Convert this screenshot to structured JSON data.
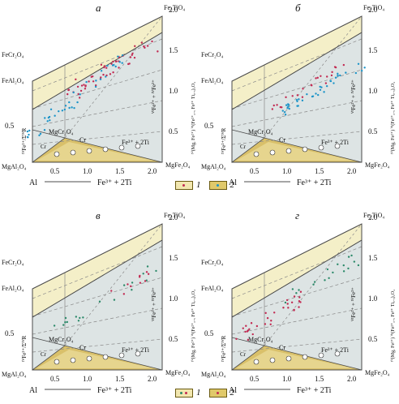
{
  "panels": [
    {
      "letter": "а",
      "corners": {
        "top_right": "Fe₂TiO₄",
        "left_mid": "FeCr₂O₄",
        "left_low": "FeAl₂O₄",
        "bottom_left": "MgAl₂O₄",
        "bottom_right": "MgFe₂O₄",
        "center": "MgCr₂O₄"
      },
      "inner": {
        "cr": "Cr",
        "fe_ti": "Fe³⁺ + 2Ti",
        "cr_small": "Cr"
      },
      "bottom_axis": {
        "left": "Al",
        "right": "Fe³⁺ + 2Ti",
        "ticks": [
          "0.5",
          "1.0",
          "1.5",
          "2.0"
        ]
      },
      "left_axis": {
        "label": "ᴵⱽFe²⁺/ΣᴵⱽR",
        "ticks": [
          "0.5"
        ]
      },
      "right_axis": {
        "label": "ᴵⱽ(Mg, Fe²⁺) ⱽᴵ(Fe²⁺₀.₅ Fe³⁺ Ti₀.₅)₂O₄",
        "ticks": [
          "0.5",
          "1.0",
          "1.5",
          "2.0"
        ]
      },
      "inner_axis": {
        "label": "ⱽᴵFe²⁺ + ᴵⱽFe²⁺"
      }
    },
    {
      "letter": "б",
      "corners": {
        "top_right": "Fe₂TiO₄",
        "left_mid": "FeCr₂O₄",
        "left_low": "FeAl₂O₄",
        "bottom_left": "MgAl₂O₄",
        "bottom_right": "MgFe₂O₄",
        "center": "MgCr₂O₄"
      },
      "inner": {
        "cr": "Cr",
        "fe_ti": "Fe³⁺ + 2Ti",
        "cr_small": "Cr"
      },
      "bottom_axis": {
        "left": "Al",
        "right": "Fe³⁺ + 2Ti",
        "ticks": [
          "0.5",
          "1.0",
          "1.5",
          "2.0"
        ]
      },
      "left_axis": {
        "label": "ᴵⱽFe²⁺/ΣᴵⱽR",
        "ticks": [
          "0.5"
        ]
      },
      "right_axis": {
        "label": "ᴵⱽ(Mg, Fe²⁺) ⱽᴵ(Fe²⁺₀.₅ Fe³⁺ Ti₀.₅)₂O₄",
        "ticks": [
          "0.5",
          "1.0",
          "1.5",
          "2.0"
        ]
      },
      "inner_axis": {
        "label": "ⱽᴵFe²⁺ + ᴵⱽFe²⁺"
      }
    },
    {
      "letter": "в",
      "corners": {
        "top_right": "Fe₂TiO₄",
        "left_mid": "FeCr₂O₄",
        "left_low": "FeAl₂O₄",
        "bottom_left": "MgAl₂O₄",
        "bottom_right": "MgFe₂O₄",
        "center": "MgCr₂O₄"
      },
      "inner": {
        "cr": "Cr",
        "fe_ti": "Fe³⁺ + 2Ti",
        "cr_small": "Cr"
      },
      "bottom_axis": {
        "left": "Al",
        "right": "Fe³⁺ + 2Ti",
        "ticks": [
          "0.5",
          "1.0",
          "1.5",
          "2.0"
        ]
      },
      "left_axis": {
        "label": "ᴵⱽFe²⁺/ΣᴵⱽR",
        "ticks": [
          "0.5"
        ]
      },
      "right_axis": {
        "label": "ᴵⱽ(Mg, Fe²⁺) ⱽᴵ(Fe²⁺₀.₅ Fe³⁺ Ti₀.₅)₂O₄",
        "ticks": [
          "0.5",
          "1.0",
          "1.5",
          "2.0"
        ]
      },
      "inner_axis": {
        "label": "ⱽᴵFe²⁺ + ᴵⱽFe²⁺"
      }
    },
    {
      "letter": "г",
      "corners": {
        "top_right": "Fe₂TiO₄",
        "left_mid": "FeCr₂O₄",
        "left_low": "FeAl₂O₄",
        "bottom_left": "MgAl₂O₄",
        "bottom_right": "MgFe₂O₄",
        "center": "MgCr₂O₄"
      },
      "inner": {
        "cr": "Cr",
        "fe_ti": "Fe³⁺ + 2Ti",
        "cr_small": "Cr"
      },
      "bottom_axis": {
        "left": "Al",
        "right": "Fe³⁺ + 2Ti",
        "ticks": [
          "0.5",
          "1.0",
          "1.5",
          "2.0"
        ]
      },
      "left_axis": {
        "label": "ᴵⱽFe²⁺/ΣᴵⱽR",
        "ticks": [
          "0.5"
        ]
      },
      "right_axis": {
        "label": "ᴵⱽ(Mg, Fe²⁺) ⱽᴵ(Fe²⁺₀.₅ Fe³⁺ Ti₀.₅)₂O₄",
        "ticks": [
          "0.5",
          "1.0",
          "1.5",
          "2.0"
        ]
      },
      "inner_axis": {
        "label": "ⱽᴵFe²⁺ + ᴵⱽFe²⁺"
      }
    }
  ],
  "legends": [
    {
      "items": [
        {
          "label": "1"
        },
        {
          "label": "2"
        }
      ]
    },
    {
      "items": [
        {
          "label": "1"
        },
        {
          "label": "2"
        }
      ]
    }
  ],
  "colors": {
    "prism_face": "#dde4e4",
    "prism_top": "#f4efc8",
    "base_fill": "#d9c06a",
    "edge": "#4a4a4a",
    "dash": "#8a8a8a",
    "series_red": "#c22a52",
    "series_blue": "#1c94c8",
    "series_green": "#2c8a6a"
  }
}
